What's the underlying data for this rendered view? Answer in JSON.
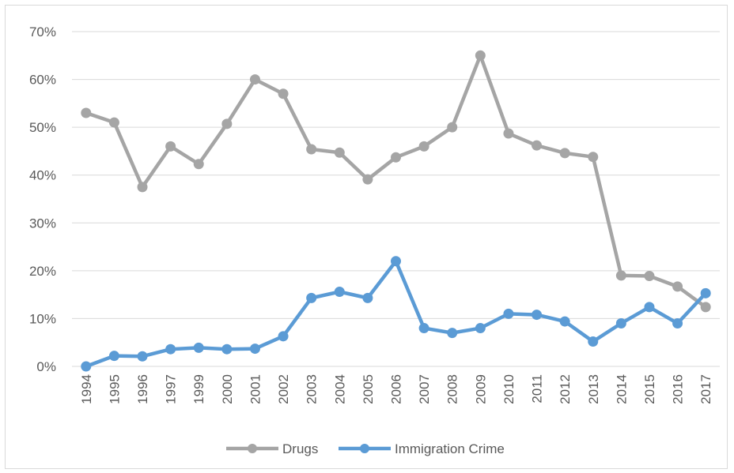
{
  "chart_data": {
    "type": "line",
    "title": "",
    "xlabel": "",
    "ylabel": "",
    "categories": [
      "1994",
      "1995",
      "1996",
      "1997",
      "1999",
      "2000",
      "2001",
      "2002",
      "2003",
      "2004",
      "2005",
      "2006",
      "2007",
      "2008",
      "2009",
      "2010",
      "2011",
      "2012",
      "2013",
      "2014",
      "2015",
      "2016",
      "2017"
    ],
    "series": [
      {
        "name": "Drugs",
        "color": "#a5a5a5",
        "values": [
          53,
          51,
          37.5,
          46,
          42.3,
          50.7,
          60,
          57,
          45.4,
          44.7,
          39.1,
          43.7,
          46,
          50,
          65,
          48.7,
          46.2,
          44.6,
          43.8,
          19,
          18.9,
          16.7,
          12.4
        ]
      },
      {
        "name": "Immigration Crime",
        "color": "#5b9bd5",
        "values": [
          0,
          2.2,
          2.1,
          3.6,
          3.9,
          3.6,
          3.7,
          6.3,
          14.3,
          15.6,
          14.3,
          22,
          8,
          7,
          8,
          11,
          10.8,
          9.4,
          5.2,
          9,
          12.4,
          9,
          15.3
        ]
      }
    ],
    "ylim": [
      0,
      70
    ],
    "yticks": [
      "0%",
      "10%",
      "20%",
      "30%",
      "40%",
      "50%",
      "60%",
      "70%"
    ],
    "ytick_values": [
      0,
      10,
      20,
      30,
      40,
      50,
      60,
      70
    ],
    "grid": true,
    "legend": "bottom"
  }
}
